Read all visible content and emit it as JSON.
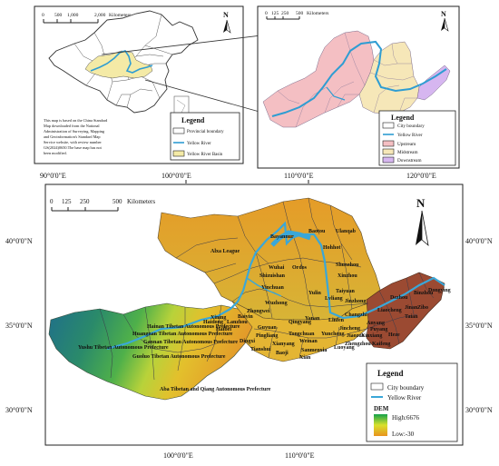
{
  "inset_china": {
    "scale_ticks": [
      "0",
      "500",
      "1,000",
      "2,000"
    ],
    "scale_unit": "Kilometers",
    "north": "N",
    "note": [
      "This map is based on the China Standard",
      "Map downloaded from the National",
      "Administration of Surveying, Mapping",
      "and Geoinformation's Standard Map",
      "Service website, with review number",
      "GS(2024)0650.The base map has not",
      "been modified."
    ],
    "legend": {
      "title": "Legend",
      "items": [
        "Provincial boundary",
        "Yellow River",
        "Yellow River Basin"
      ]
    }
  },
  "inset_basin": {
    "scale_ticks": [
      "0",
      "125",
      "250",
      "500"
    ],
    "scale_unit": "Kilometers",
    "north": "N",
    "legend": {
      "title": "Legend",
      "items": [
        "City boundary",
        "Yellow River",
        "Upstream",
        "Midstream",
        "Downstream"
      ]
    }
  },
  "top_lon_labels": [
    "90°0'0\"E",
    "100°0'0\"E",
    "110°0'0\"E",
    "120°0'0\"E"
  ],
  "main_map": {
    "scale_ticks": [
      "0",
      "125",
      "250",
      "500"
    ],
    "scale_unit": "Kilometers",
    "north": "N",
    "lat_labels": [
      "40°0'0\"N",
      "35°0'0\"N",
      "30°0'0\"N"
    ],
    "lon_labels": [
      "100°0'0\"E",
      "110°0'0\"E"
    ],
    "legend": {
      "title": "Legend",
      "items": [
        "City boundary",
        "Yellow River"
      ],
      "dem_title": "DEM",
      "dem_high": "High:6676",
      "dem_low": "Low:-30"
    },
    "place_labels": {
      "baotou": "Baotou",
      "ulanqab": "Ulanqab",
      "bayannur": "Bayannur",
      "hohhot": "Hohhot",
      "alxa": "Alxa League",
      "wuhai": "Wuhai",
      "ordos": "Ordos",
      "shizuishan": "Shizuishan",
      "shuozhou": "Shuozhou",
      "xinzhou": "Xinzhou",
      "yinchuan": "Yinchuan",
      "yulin": "Yulin",
      "taiyuan": "Taiyuan",
      "lvliang": "Lvliang",
      "wuzhong": "Wuzhong",
      "jinzhong": "Jinzhong",
      "zhongwei": "Zhongwei",
      "guyuan": "Guyuan",
      "qingyang": "Qingyang",
      "yanan": "Yanan",
      "linfen": "Linfen",
      "changzhi": "Changzhi",
      "xining": "Xining",
      "haidong": "Haidong",
      "lanzhou": "Lanzhou",
      "baiyin": "Baiyin",
      "dingxi": "Dingxi",
      "pingliang": "Pingliang",
      "tianshui": "Tianshui",
      "xianyang": "Xianyang",
      "tongchuan": "Tongchuan",
      "yuncheng": "Yuncheng",
      "weinan": "Weinan",
      "sanmenxia": "Sanmenxia",
      "luoyang": "Luoyang",
      "baoji": "Baoji",
      "xian": "Xian",
      "jincheng": "Jincheng",
      "jiaozuo": "Jiaozuo",
      "xinxiang": "Xinxiang",
      "zhengzhou": "Zhengzhou",
      "kaifeng": "Kaifeng",
      "anyang": "Anyang",
      "puyang": "Puyang",
      "liaocheng": "Liaocheng",
      "taian": "Taian",
      "jinan": "Jinan",
      "zibo": "Zibo",
      "binzhou": "Binzhou",
      "dezhou": "Dezhou",
      "dongying": "Dongying",
      "heze": "Heze",
      "haibei": "Haibei",
      "hainan": "Hainan Tibetan Autonomous Prefecture",
      "huangnan": "Huangnan Tibetan Autonomous Prefecture",
      "gannan": "Gannan Tibetan Autonomous Prefecture",
      "guoluo": "Guoluo Tibetan Autonomous Prefecture",
      "yushu": "Yushu Tibetan Autonomous Prefecture",
      "aba": "Aba Tibetan and Qiang Autonomous Prefecture"
    }
  },
  "colors": {
    "upstream": "#f4bfc3",
    "midstream": "#f6e7b8",
    "downstream": "#d6b6f0",
    "river": "#3aa7d8",
    "dem_high": "#1aa04a",
    "dem_mid": "#d7e02c",
    "dem_low": "#e7a21f",
    "downstream_dem": "#9b4a32"
  }
}
